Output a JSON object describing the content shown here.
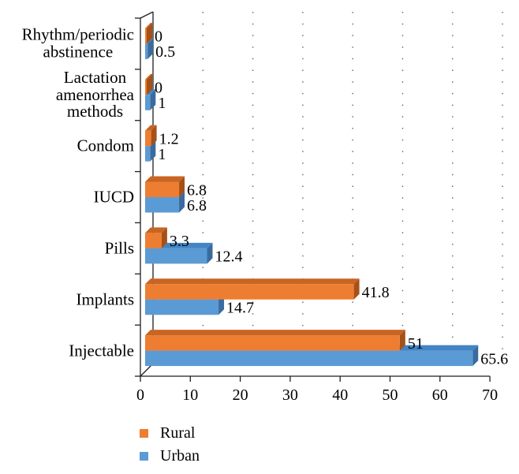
{
  "chart_data": {
    "type": "bar",
    "orientation": "horizontal",
    "style": "3d",
    "title": "",
    "xlabel": "",
    "ylabel": "",
    "xlim": [
      0,
      70
    ],
    "x_ticks": [
      0,
      10,
      20,
      30,
      40,
      50,
      60,
      70
    ],
    "grid": "vertical-dotted",
    "legend_position": "bottom-left",
    "axis_color": "#1f1f1f",
    "gridline_color": "#666666",
    "text_color": "#000000",
    "categories": [
      "Rhythm/periodic abstinence",
      "Lactation amenorrhea methods",
      "Condom",
      "IUCD",
      "Pills",
      "Implants",
      "Injectable"
    ],
    "category_lines": [
      [
        "Rhythm/periodic",
        "abstinence"
      ],
      [
        "Lactation",
        "amenorrhea",
        "methods"
      ],
      [
        "Condom"
      ],
      [
        "IUCD"
      ],
      [
        "Pills"
      ],
      [
        "Implants"
      ],
      [
        "Injectable"
      ]
    ],
    "series": [
      {
        "name": "Rural",
        "color": "#ED7D31",
        "top_color": "#C86523",
        "side_color": "#A55117",
        "values": [
          0,
          0,
          1.2,
          6.8,
          3.3,
          41.8,
          51
        ],
        "labels": [
          "0",
          "0",
          "1.2",
          "6.8",
          "3.3",
          "41.8",
          "51"
        ]
      },
      {
        "name": "Urban",
        "color": "#5B9BD5",
        "top_color": "#4384C4",
        "side_color": "#3A6B9E",
        "values": [
          0.5,
          1,
          1,
          6.8,
          12.4,
          14.7,
          65.6
        ],
        "labels": [
          "0.5",
          "1",
          "1",
          "6.8",
          "12.4",
          "14.7",
          "65.6"
        ]
      }
    ]
  }
}
